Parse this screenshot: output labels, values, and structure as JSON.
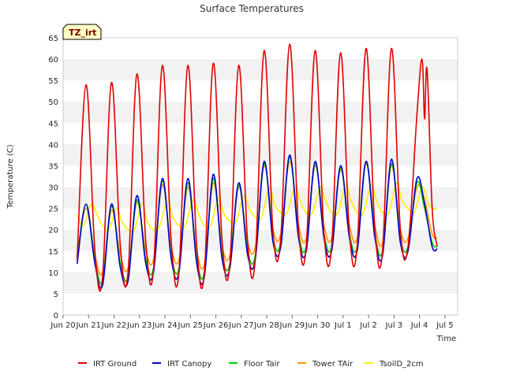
{
  "chart_data": {
    "type": "line",
    "title": "Surface Temperatures",
    "xlabel": "Time",
    "ylabel": "Temperature (C)",
    "badge": "TZ_irt",
    "ylim": [
      0,
      65
    ],
    "yticks": [
      0,
      5,
      10,
      15,
      20,
      25,
      30,
      35,
      40,
      45,
      50,
      55,
      60,
      65
    ],
    "xlim": [
      0,
      15.5
    ],
    "xticks": [
      {
        "x": 0,
        "label": "Jun 20"
      },
      {
        "x": 1,
        "label": "Jun 21"
      },
      {
        "x": 2,
        "label": "Jun 22"
      },
      {
        "x": 3,
        "label": "Jun 23"
      },
      {
        "x": 4,
        "label": "Jun 24"
      },
      {
        "x": 5,
        "label": "Jun 25"
      },
      {
        "x": 6,
        "label": "Jun 26"
      },
      {
        "x": 7,
        "label": "Jun 27"
      },
      {
        "x": 8,
        "label": "Jun 28"
      },
      {
        "x": 9,
        "label": "Jun 29"
      },
      {
        "x": 10,
        "label": "Jun 30"
      },
      {
        "x": 11,
        "label": "Jul 1"
      },
      {
        "x": 12,
        "label": "Jul 2"
      },
      {
        "x": 13,
        "label": "Jul 3"
      },
      {
        "x": 14,
        "label": "Jul 4"
      },
      {
        "x": 15,
        "label": "Jul 5"
      }
    ],
    "grid": "alternating horizontal bands",
    "legend_position": "bottom",
    "series": [
      {
        "name": "IRT Ground",
        "color": "#e00000",
        "x": [
          0.55,
          0.9,
          1.25,
          1.55,
          1.9,
          2.25,
          2.55,
          2.9,
          3.25,
          3.55,
          3.9,
          4.25,
          4.55,
          4.9,
          5.25,
          5.55,
          5.9,
          6.25,
          6.55,
          6.9,
          7.25,
          7.55,
          7.9,
          8.25,
          8.55,
          8.9,
          9.25,
          9.55,
          9.9,
          10.25,
          10.55,
          10.9,
          11.25,
          11.55,
          11.9,
          12.25,
          12.55,
          12.9,
          13.25,
          13.55,
          13.9,
          14.1,
          14.2,
          14.3,
          14.5,
          14.7
        ],
        "y": [
          13,
          54,
          15,
          9,
          54.5,
          16,
          10,
          56.5,
          17,
          10.5,
          58.5,
          17,
          10,
          58.5,
          16,
          10,
          59,
          17,
          12,
          58.5,
          17,
          13,
          62,
          19,
          18,
          63.5,
          20,
          16,
          62,
          19,
          16,
          61.5,
          19,
          16,
          62.5,
          20,
          15,
          62.5,
          20,
          16,
          47,
          60,
          46,
          57.5,
          25,
          16
        ]
      },
      {
        "name": "IRT Canopy",
        "color": "#0000cc",
        "x": [
          0.55,
          0.9,
          1.25,
          1.55,
          1.9,
          2.25,
          2.55,
          2.9,
          3.25,
          3.55,
          3.9,
          4.25,
          4.55,
          4.9,
          5.25,
          5.55,
          5.9,
          6.25,
          6.55,
          6.9,
          7.25,
          7.55,
          7.9,
          8.25,
          8.55,
          8.9,
          9.25,
          9.55,
          9.9,
          10.25,
          10.55,
          10.9,
          11.25,
          11.55,
          11.9,
          12.25,
          12.55,
          12.9,
          13.25,
          13.55,
          13.9,
          14.2,
          14.5,
          14.7
        ],
        "y": [
          12,
          26,
          12,
          7,
          26,
          11,
          8,
          28,
          12,
          10,
          32,
          13,
          10,
          32,
          12,
          9,
          33,
          13,
          11,
          31,
          14,
          13,
          36,
          17,
          16,
          37.5,
          18,
          15,
          36,
          18,
          15,
          35,
          18,
          15,
          36,
          18,
          14,
          36.5,
          17,
          15,
          32,
          26,
          16,
          15.5
        ]
      },
      {
        "name": "Floor Tair",
        "color": "#00cc00",
        "x": [
          0.55,
          0.9,
          1.25,
          1.55,
          1.9,
          2.25,
          2.55,
          2.9,
          3.25,
          3.55,
          3.9,
          4.25,
          4.55,
          4.9,
          5.25,
          5.55,
          5.9,
          6.25,
          6.55,
          6.9,
          7.25,
          7.55,
          7.9,
          8.25,
          8.55,
          8.9,
          9.25,
          9.55,
          9.9,
          10.25,
          10.55,
          10.9,
          11.25,
          11.55,
          11.9,
          12.25,
          12.55,
          12.9,
          13.25,
          13.55,
          13.9,
          14.2,
          14.5,
          14.7
        ],
        "y": [
          13,
          26,
          13,
          8,
          25.5,
          12,
          9,
          27,
          13,
          11,
          31.5,
          14,
          11,
          31,
          13,
          10,
          32,
          14,
          12,
          30.5,
          15,
          14,
          35.5,
          18,
          17,
          37,
          19,
          16,
          35.5,
          19,
          16,
          34.5,
          19,
          16,
          36,
          19,
          15,
          35.5,
          18,
          16,
          31,
          25,
          17,
          16
        ]
      },
      {
        "name": "Tower TAir",
        "color": "#ff9900",
        "x": [
          0.55,
          0.9,
          1.25,
          1.55,
          1.9,
          2.25,
          2.55,
          2.9,
          3.25,
          3.55,
          3.9,
          4.25,
          4.55,
          4.9,
          5.25,
          5.55,
          5.9,
          6.25,
          6.55,
          6.9,
          7.25,
          7.55,
          7.9,
          8.25,
          8.55,
          8.9,
          9.25,
          9.55,
          9.9,
          10.25,
          10.55,
          10.9,
          11.25,
          11.55,
          11.9,
          12.25,
          12.55,
          12.9,
          13.25,
          13.55,
          13.9,
          14.2,
          14.5,
          14.7
        ],
        "y": [
          14,
          25,
          14,
          10,
          24.5,
          14,
          11,
          26.5,
          15,
          13,
          30.5,
          16,
          13,
          30,
          15,
          12,
          31,
          16,
          14,
          30,
          17,
          16,
          35,
          20,
          19,
          36,
          21,
          18,
          35,
          21,
          18,
          34,
          21,
          18,
          35.5,
          21,
          17,
          35,
          20,
          18,
          30,
          27,
          19,
          18
        ]
      },
      {
        "name": "TsoilD_2cm",
        "color": "#ffee00",
        "x": [
          0.55,
          0.8,
          1.1,
          1.3,
          1.55,
          1.8,
          2.1,
          2.3,
          2.55,
          2.8,
          3.1,
          3.3,
          3.55,
          3.8,
          4.1,
          4.3,
          4.55,
          4.8,
          5.1,
          5.3,
          5.55,
          5.8,
          6.1,
          6.3,
          6.55,
          6.8,
          7.1,
          7.3,
          7.55,
          7.8,
          8.1,
          8.3,
          8.55,
          8.8,
          9.1,
          9.3,
          9.55,
          9.8,
          10.1,
          10.3,
          10.55,
          10.8,
          11.1,
          11.3,
          11.55,
          11.8,
          12.1,
          12.3,
          12.55,
          12.8,
          13.1,
          13.3,
          13.55,
          13.8,
          14.1,
          14.3,
          14.5,
          14.7
        ],
        "y": [
          23.5,
          21,
          26,
          24,
          21,
          20,
          25,
          22,
          20,
          20,
          26,
          22,
          20,
          21,
          27,
          23,
          21,
          21,
          27,
          24,
          21,
          21,
          27.5,
          24,
          22,
          22,
          28,
          25,
          23,
          23,
          30,
          26,
          24,
          24,
          30,
          27,
          24,
          24,
          30,
          27,
          24,
          24,
          30.5,
          27,
          24,
          24,
          30.5,
          27,
          24,
          24,
          31,
          27,
          25,
          24,
          30,
          27,
          25,
          25
        ]
      }
    ]
  }
}
